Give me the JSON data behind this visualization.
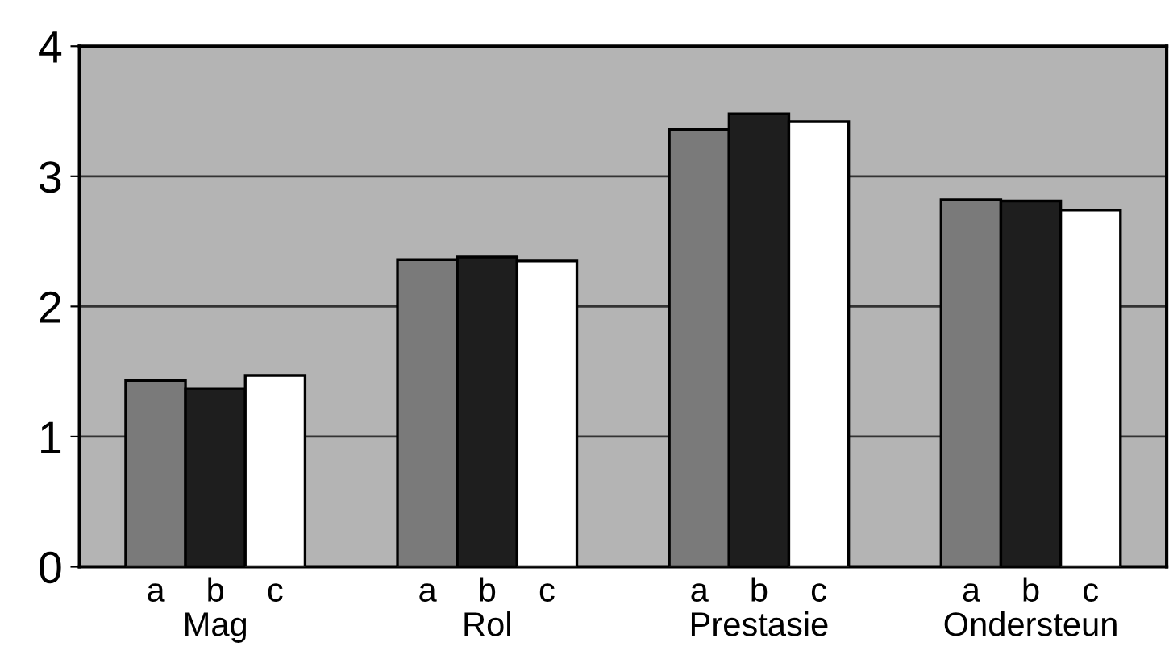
{
  "chart_data": {
    "type": "bar",
    "categories": [
      "Mag",
      "Rol",
      "Prestasie",
      "Ondersteun"
    ],
    "series": [
      {
        "name": "a",
        "color": "#7a7a7a",
        "values": [
          1.43,
          2.36,
          3.36,
          2.82
        ]
      },
      {
        "name": "b",
        "color": "#1e1e1e",
        "values": [
          1.37,
          2.38,
          3.48,
          2.81
        ]
      },
      {
        "name": "c",
        "color": "#ffffff",
        "values": [
          1.47,
          2.35,
          3.42,
          2.74
        ]
      }
    ],
    "ylim": [
      0,
      4
    ],
    "yticks": [
      0,
      1,
      2,
      3,
      4
    ],
    "grid": "y"
  }
}
